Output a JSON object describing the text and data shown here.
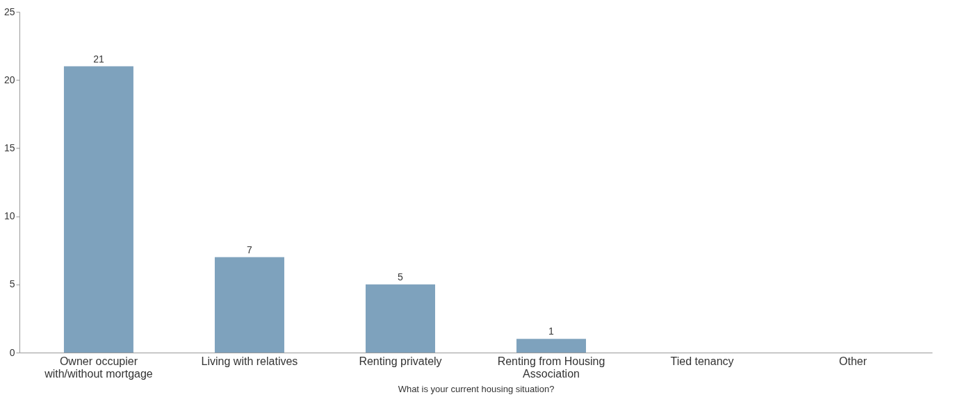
{
  "chart_data": {
    "type": "bar",
    "xlabel": "What is your current housing situation?",
    "categories": [
      "Owner occupier with/without mortgage",
      "Living with relatives",
      "Renting privately",
      "Renting from Housing Association",
      "Tied tenancy",
      "Other"
    ],
    "values": [
      21,
      7,
      5,
      1,
      0,
      0
    ],
    "value_labels": [
      "21",
      "7",
      "5",
      "1",
      null,
      null
    ],
    "color": "#7ea2bd",
    "ylim": [
      0,
      25
    ],
    "yticks": [
      0,
      5,
      10,
      15,
      20,
      25
    ],
    "grid": false
  }
}
